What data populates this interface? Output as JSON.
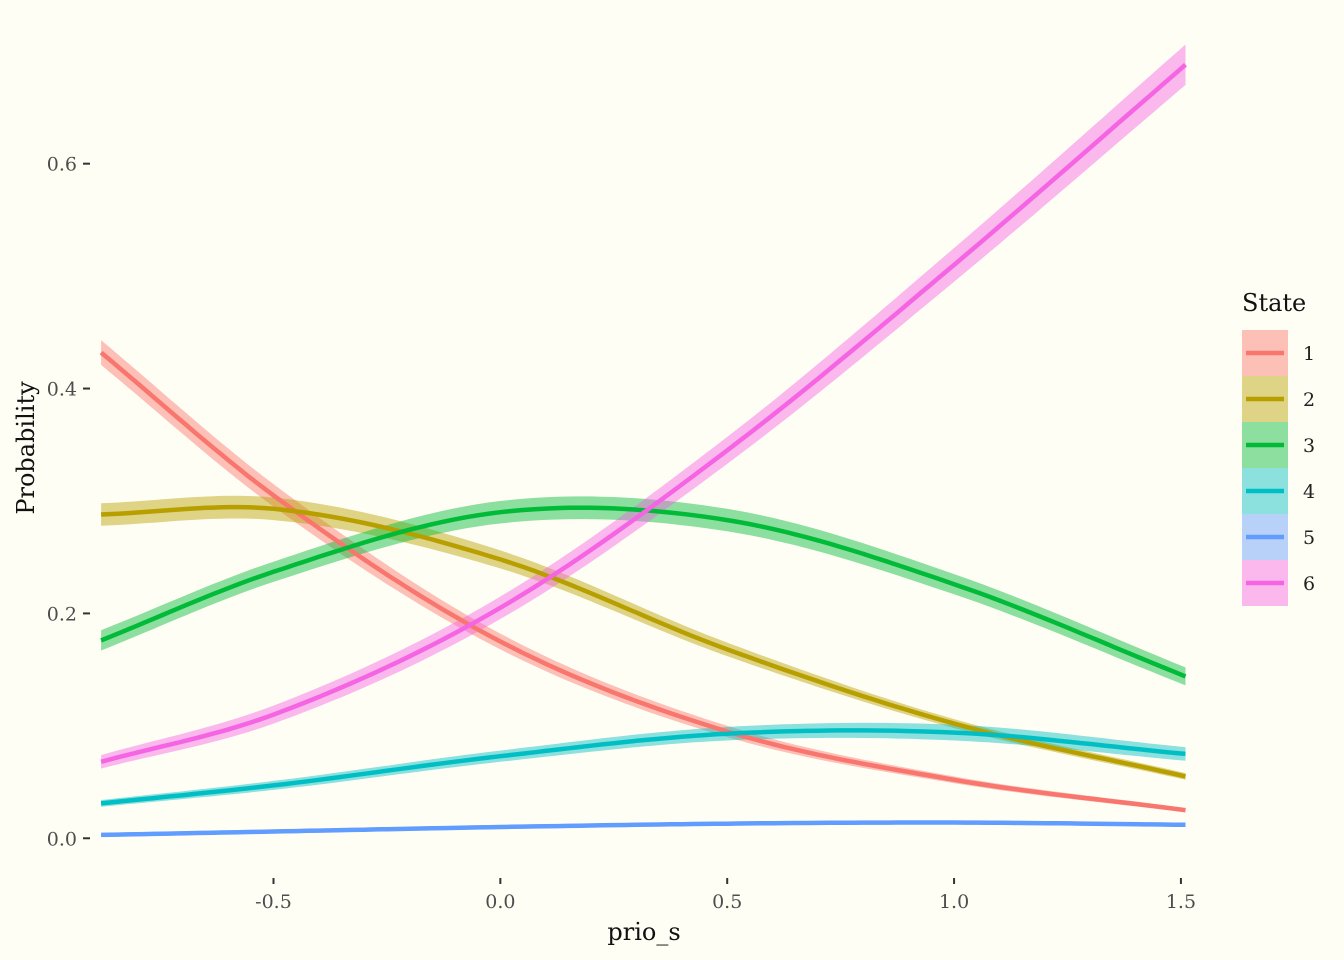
{
  "chart_data": {
    "type": "line",
    "title": "",
    "xlabel": "prio_s",
    "ylabel": "Probability",
    "xlim": [
      -0.9,
      1.52
    ],
    "ylim": [
      -0.03,
      0.71
    ],
    "x_ticks": [
      -0.5,
      0.0,
      0.5,
      1.0,
      1.5
    ],
    "x_tick_labels": [
      "-0.5",
      "0.0",
      "0.5",
      "1.0",
      "1.5"
    ],
    "y_ticks": [
      0.0,
      0.2,
      0.4,
      0.6
    ],
    "y_tick_labels": [
      "0.0",
      "0.2",
      "0.4",
      "0.6"
    ],
    "grid": false,
    "legend_title": "State",
    "legend_position": "right",
    "x": [
      -0.88,
      -0.5,
      0.0,
      0.5,
      1.0,
      1.51
    ],
    "series": [
      {
        "name": "1",
        "color": "#F8766D",
        "values": [
          0.432,
          0.305,
          0.175,
          0.095,
          0.052,
          0.025
        ],
        "ci": [
          0.011,
          0.01,
          0.007,
          0.005,
          0.003,
          0.002
        ]
      },
      {
        "name": "2",
        "color": "#B79F00",
        "values": [
          0.288,
          0.293,
          0.248,
          0.168,
          0.102,
          0.055
        ],
        "ci": [
          0.01,
          0.01,
          0.008,
          0.006,
          0.004,
          0.003
        ]
      },
      {
        "name": "3",
        "color": "#00BA38",
        "values": [
          0.176,
          0.237,
          0.29,
          0.283,
          0.226,
          0.144
        ],
        "ci": [
          0.009,
          0.009,
          0.01,
          0.01,
          0.009,
          0.008
        ]
      },
      {
        "name": "4",
        "color": "#00BFC4",
        "values": [
          0.031,
          0.047,
          0.073,
          0.093,
          0.094,
          0.075
        ],
        "ci": [
          0.003,
          0.004,
          0.005,
          0.006,
          0.007,
          0.006
        ]
      },
      {
        "name": "5",
        "color": "#619CFF",
        "values": [
          0.003,
          0.006,
          0.01,
          0.013,
          0.014,
          0.012
        ],
        "ci": [
          0.001,
          0.001,
          0.001,
          0.001,
          0.001,
          0.001
        ]
      },
      {
        "name": "6",
        "color": "#F564E3",
        "values": [
          0.068,
          0.11,
          0.205,
          0.345,
          0.51,
          0.688
        ],
        "ci": [
          0.006,
          0.008,
          0.01,
          0.012,
          0.015,
          0.018
        ]
      }
    ]
  }
}
